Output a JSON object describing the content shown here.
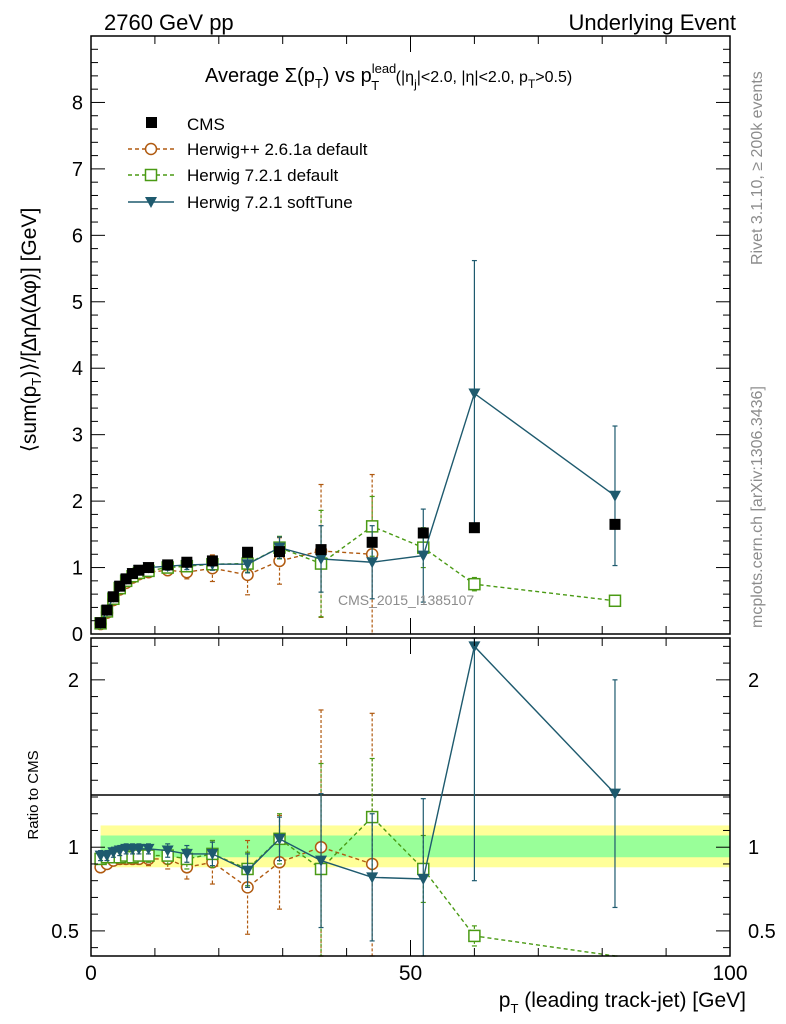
{
  "header": {
    "left": "2760 GeV pp",
    "right": "Underlying Event"
  },
  "side_labels": {
    "rivet": "Rivet 3.1.10, ≥ 200k events",
    "mcplots": "mcplots.cern.ch [arXiv:1306.3436]"
  },
  "watermark": "CMS_2015_I1385107",
  "colors": {
    "cms": "#000000",
    "herwigpp": "#b05a10",
    "herwig721": "#4a9a14",
    "softtune": "#1e5a6e",
    "band_inner": "#99ff99",
    "band_outer": "#ffff99"
  },
  "chart_data": [
    {
      "type": "scatter",
      "panel": "main",
      "title": {
        "pre": "Average Σ(p",
        "sub1": "T",
        "mid": ") vs p",
        "sup": "lead",
        "sub2": "T",
        "post": " (|η",
        "sub3": "j",
        "post2": "|<2.0, |η|<2.0, p",
        "sub4": "T",
        "post3": ">0.5)"
      },
      "ylabel": "⟨sum(p_T)⟩/[∆η∆(∆φ)] [GeV]",
      "xlabel": "p_T (leading track-jet) [GeV]",
      "xlim": [
        0,
        100
      ],
      "ylim": [
        0,
        9
      ],
      "x_ticks": [
        0,
        50,
        100
      ],
      "y_ticks": [
        0,
        1,
        2,
        3,
        4,
        5,
        6,
        7,
        8
      ],
      "legend_position": "top-left",
      "series": [
        {
          "name": "CMS",
          "marker": "filled-square",
          "x": [
            1.5,
            2.5,
            3.5,
            4.5,
            5.5,
            6.5,
            7.5,
            9,
            12,
            15,
            19,
            24.5,
            29.5,
            36,
            44,
            52,
            60,
            82
          ],
          "y": [
            0.17,
            0.36,
            0.56,
            0.72,
            0.83,
            0.91,
            0.96,
            1.0,
            1.04,
            1.08,
            1.1,
            1.23,
            1.24,
            1.27,
            1.38,
            1.52,
            1.6,
            1.65
          ]
        },
        {
          "name": "Herwig++ 2.6.1a default",
          "marker": "open-circle",
          "x": [
            1.5,
            2.5,
            3.5,
            4.5,
            5.5,
            6.5,
            7.5,
            9,
            12,
            15,
            19,
            24.5,
            29.5,
            36,
            44
          ],
          "y": [
            0.15,
            0.32,
            0.51,
            0.67,
            0.77,
            0.85,
            0.9,
            0.93,
            0.96,
            0.93,
            0.99,
            0.89,
            1.1,
            1.25,
            1.2
          ],
          "err": [
            0.02,
            0.02,
            0.03,
            0.03,
            0.04,
            0.04,
            0.05,
            0.06,
            0.08,
            0.1,
            0.2,
            0.3,
            0.35,
            1.0,
            1.2
          ]
        },
        {
          "name": "Herwig 7.2.1 default",
          "marker": "open-square",
          "x": [
            1.5,
            2.5,
            3.5,
            4.5,
            5.5,
            6.5,
            7.5,
            9,
            12,
            15,
            19,
            24.5,
            29.5,
            36,
            44,
            52,
            60,
            82
          ],
          "y": [
            0.16,
            0.34,
            0.53,
            0.69,
            0.8,
            0.87,
            0.92,
            0.95,
            1.0,
            1.02,
            1.05,
            1.06,
            1.3,
            1.06,
            1.62,
            1.3,
            0.75,
            0.5
          ],
          "err": [
            0.02,
            0.02,
            0.03,
            0.03,
            0.04,
            0.04,
            0.04,
            0.05,
            0.06,
            0.07,
            0.09,
            0.13,
            0.17,
            0.8,
            0.45,
            0.3,
            0.1,
            0.05
          ]
        },
        {
          "name": "Herwig 7.2.1 softTune",
          "marker": "filled-triangle-down",
          "x": [
            1.5,
            2.5,
            3.5,
            4.5,
            5.5,
            6.5,
            7.5,
            9,
            12,
            15,
            19,
            24.5,
            29.5,
            36,
            44,
            52,
            60,
            82
          ],
          "y": [
            0.16,
            0.35,
            0.56,
            0.72,
            0.83,
            0.91,
            0.96,
            1.0,
            1.02,
            1.04,
            1.05,
            1.05,
            1.3,
            1.13,
            1.08,
            1.18,
            3.62,
            2.08
          ],
          "err": [
            0.02,
            0.02,
            0.03,
            0.03,
            0.04,
            0.04,
            0.04,
            0.05,
            0.06,
            0.07,
            0.09,
            0.13,
            0.16,
            0.5,
            0.55,
            0.7,
            2.0,
            1.05
          ]
        }
      ]
    },
    {
      "type": "scatter",
      "panel": "ratio",
      "ylabel": "Ratio to CMS",
      "xlim": [
        0,
        100
      ],
      "ylim": [
        0.35,
        2.25
      ],
      "x_ticks": [
        0,
        50,
        100
      ],
      "y_ticks": [
        0.5,
        1,
        2
      ],
      "series": [
        {
          "name": "Herwig++ 2.6.1a default",
          "x": [
            1.5,
            2.5,
            3.5,
            4.5,
            5.5,
            6.5,
            7.5,
            9,
            12,
            15,
            19,
            24.5,
            29.5,
            36,
            44
          ],
          "y": [
            0.88,
            0.9,
            0.92,
            0.93,
            0.93,
            0.93,
            0.93,
            0.93,
            0.93,
            0.88,
            0.91,
            0.76,
            0.91,
            1.0,
            0.9
          ],
          "err": [
            0.03,
            0.03,
            0.03,
            0.03,
            0.03,
            0.03,
            0.03,
            0.04,
            0.06,
            0.07,
            0.13,
            0.28,
            0.28,
            0.82,
            0.9
          ]
        },
        {
          "name": "Herwig 7.2.1 default",
          "x": [
            1.5,
            2.5,
            3.5,
            4.5,
            5.5,
            6.5,
            7.5,
            9,
            12,
            15,
            19,
            24.5,
            29.5,
            36,
            44,
            52,
            60,
            82
          ],
          "y": [
            0.93,
            0.94,
            0.94,
            0.94,
            0.95,
            0.94,
            0.95,
            0.95,
            0.95,
            0.93,
            0.96,
            0.87,
            1.05,
            0.87,
            1.18,
            0.87,
            0.47,
            0.3
          ],
          "err": [
            0.03,
            0.03,
            0.03,
            0.03,
            0.03,
            0.03,
            0.03,
            0.04,
            0.05,
            0.06,
            0.08,
            0.1,
            0.15,
            0.63,
            0.35,
            0.2,
            0.06,
            0.03
          ]
        },
        {
          "name": "Herwig 7.2.1 softTune",
          "x": [
            1.5,
            2.5,
            3.5,
            4.5,
            5.5,
            6.5,
            7.5,
            9,
            12,
            15,
            19,
            24.5,
            29.5,
            36,
            44,
            52,
            60,
            82
          ],
          "y": [
            0.95,
            0.95,
            0.97,
            0.98,
            0.99,
            0.99,
            0.99,
            0.99,
            0.98,
            0.96,
            0.96,
            0.86,
            1.05,
            0.92,
            0.82,
            0.81,
            2.2,
            1.32
          ],
          "err": [
            0.03,
            0.03,
            0.03,
            0.03,
            0.03,
            0.03,
            0.03,
            0.03,
            0.04,
            0.05,
            0.07,
            0.1,
            0.13,
            0.4,
            0.38,
            0.48,
            1.4,
            0.68
          ]
        }
      ]
    }
  ]
}
